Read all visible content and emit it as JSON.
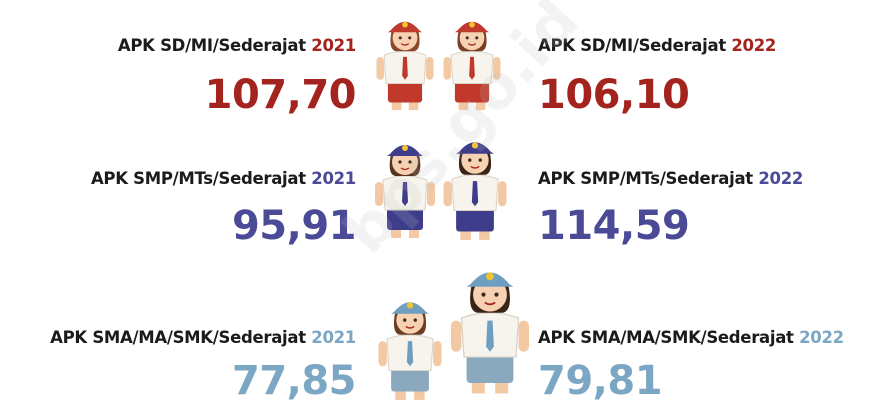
{
  "rows": [
    {
      "label": "APK SD/MI/Sederajat",
      "color": "#a3231f",
      "left": {
        "year": "2021",
        "value": "107,70"
      },
      "right": {
        "year": "2022",
        "value": "106,10"
      }
    },
    {
      "label": "APK SMP/MTs/Sederajat",
      "color": "#4b4a97",
      "left": {
        "year": "2021",
        "value": "95,91"
      },
      "right": {
        "year": "2022",
        "value": "114,59"
      }
    },
    {
      "label": "APK SMA/MA/SMK/Sederajat",
      "color": "#7ba7c4",
      "left": {
        "year": "2021",
        "value": "77,85"
      },
      "right": {
        "year": "2022",
        "value": "79,81"
      }
    }
  ],
  "watermark": "bps.go.id"
}
